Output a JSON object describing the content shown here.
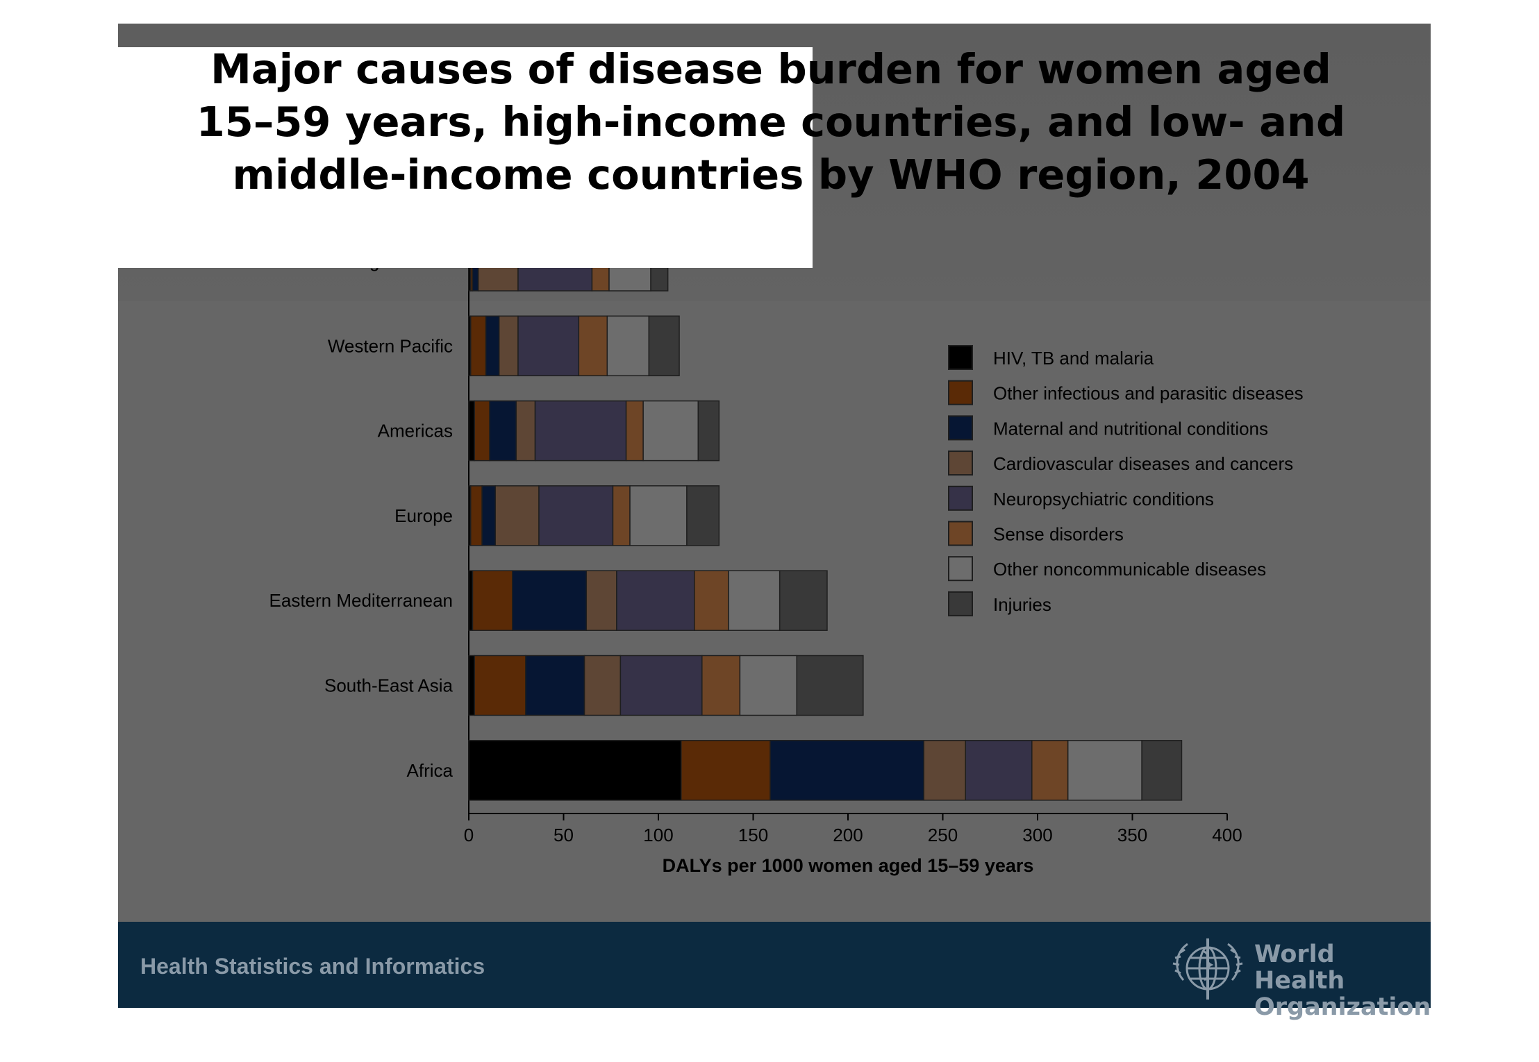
{
  "slide": {
    "title_lines": [
      "Major causes of disease burden for women aged",
      "15–59 years, high-income countries, and low- and",
      "middle-income countries by WHO region, 2004"
    ],
    "footer_text": "Health Statistics and Informatics",
    "org_name_lines": [
      "World Health",
      "Organization"
    ],
    "logo_icon": "who-emblem-icon",
    "colors": {
      "slide_bg": "#666666",
      "footer_bg": "#0c2a40",
      "footer_text": "#8a9aa8"
    }
  },
  "chart_data": {
    "type": "bar",
    "orientation": "horizontal",
    "stacked": true,
    "categories": [
      "High income",
      "Western Pacific",
      "Americas",
      "Europe",
      "Eastern Mediterranean",
      "South-East Asia",
      "Africa"
    ],
    "series": [
      {
        "name": "HIV, TB and malaria",
        "color": "#000000",
        "values": [
          1,
          1,
          3,
          1,
          2,
          3,
          112
        ]
      },
      {
        "name": "Other infectious and parasitic diseases",
        "color": "#5a2a06",
        "values": [
          1,
          8,
          8,
          6,
          21,
          27,
          47
        ]
      },
      {
        "name": "Maternal and nutritional conditions",
        "color": "#061633",
        "values": [
          3,
          7,
          14,
          7,
          39,
          31,
          81
        ]
      },
      {
        "name": "Cardiovascular diseases and cancers",
        "color": "#5e4635",
        "values": [
          21,
          10,
          10,
          23,
          16,
          19,
          22
        ]
      },
      {
        "name": "Neuropsychiatric conditions",
        "color": "#363248",
        "values": [
          39,
          32,
          48,
          39,
          41,
          43,
          35
        ]
      },
      {
        "name": "Sense disorders",
        "color": "#6e4526",
        "values": [
          9,
          15,
          9,
          9,
          18,
          20,
          19
        ]
      },
      {
        "name": "Other noncommunicable diseases",
        "color": "#6d6d6d",
        "values": [
          22,
          22,
          29,
          30,
          27,
          30,
          39
        ]
      },
      {
        "name": "Injuries",
        "color": "#393939",
        "values": [
          9,
          16,
          11,
          17,
          25,
          35,
          21
        ]
      }
    ],
    "xlabel": "DALYs per 1000 women aged 15–59 years",
    "ylabel": "",
    "xlim": [
      0,
      400
    ],
    "xticks": [
      "0",
      "50",
      "100",
      "150",
      "200",
      "250",
      "300",
      "350",
      "400"
    ],
    "legend_position": "right",
    "grid": false
  }
}
